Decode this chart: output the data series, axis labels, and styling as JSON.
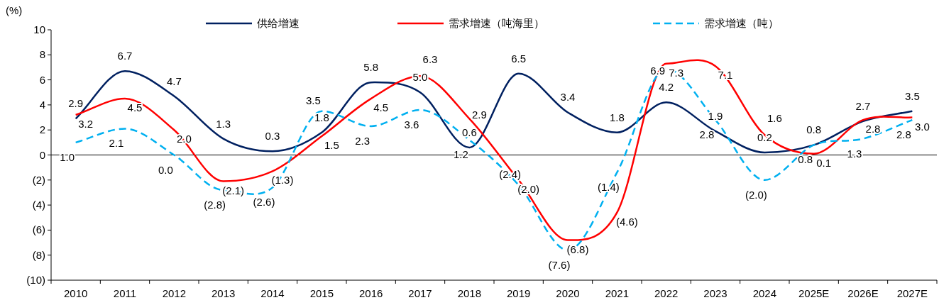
{
  "chart_data": {
    "type": "line",
    "ylabel": "(%)",
    "categories": [
      "2010",
      "2011",
      "2012",
      "2013",
      "2014",
      "2015",
      "2016",
      "2017",
      "2018",
      "2019",
      "2020",
      "2021",
      "2022",
      "2023",
      "2024",
      "2025E",
      "2026E",
      "2027E"
    ],
    "ylim": [
      -10,
      10
    ],
    "yticks": [
      {
        "value": -10,
        "label": "(10)"
      },
      {
        "value": -8,
        "label": "(8)"
      },
      {
        "value": -6,
        "label": "(6)"
      },
      {
        "value": -4,
        "label": "(4)"
      },
      {
        "value": -2,
        "label": "(2)"
      },
      0,
      2,
      4,
      6,
      8,
      10
    ],
    "grid": false,
    "ref_lines": [
      {
        "axis": "y",
        "value": 0,
        "color": "#000000"
      }
    ],
    "legend": "top",
    "marker": "none",
    "series": [
      {
        "name": "供给增速",
        "color": "#002060",
        "line_style": "solid",
        "values": [
          2.9,
          6.7,
          4.7,
          1.3,
          0.3,
          1.8,
          5.8,
          5.0,
          0.6,
          6.5,
          3.4,
          1.8,
          4.2,
          1.9,
          0.2,
          0.8,
          2.7,
          3.5
        ],
        "value_labels": [
          "2.9",
          "6.7",
          "4.7",
          "1.3",
          "0.3",
          "1.8",
          "5.8",
          "5.0",
          "0.6",
          "6.5",
          "3.4",
          "1.8",
          "4.2",
          "1.9",
          "0.2",
          "0.8",
          "2.7",
          "3.5"
        ]
      },
      {
        "name": "需求增速（吨海里）",
        "color": "#ff0000",
        "line_style": "solid",
        "values": [
          3.2,
          4.5,
          2.0,
          -2.1,
          -1.3,
          1.5,
          4.5,
          6.3,
          2.9,
          -2.0,
          -6.8,
          -4.6,
          7.3,
          7.1,
          1.6,
          0.1,
          2.8,
          3.0
        ],
        "value_labels": [
          "3.2",
          "4.5",
          "2.0",
          "(2.1)",
          "(1.3)",
          "1.5",
          "4.5",
          "6.3",
          "2.9",
          "(2.0)",
          "(6.8)",
          "(4.6)",
          "7.3",
          "7.1",
          "1.6",
          "0.1",
          "2.8",
          "3.0"
        ]
      },
      {
        "name": "需求增速（吨）",
        "color": "#00b0f0",
        "line_style": "dashed",
        "values": [
          1.0,
          2.1,
          0.0,
          -2.8,
          -2.6,
          3.5,
          2.3,
          3.6,
          1.2,
          -2.4,
          -7.6,
          -1.4,
          6.9,
          2.8,
          -2.0,
          0.8,
          1.3,
          2.8
        ],
        "value_labels": [
          "1.0",
          "2.1",
          "0.0",
          "(2.8)",
          "(2.6)",
          "3.5",
          "2.3",
          "3.6",
          "1.2",
          "(2.4)",
          "(7.6)",
          "(1.4)",
          "6.9",
          "2.8",
          "(2.0)",
          "0.8",
          "1.3",
          "2.8"
        ]
      }
    ]
  }
}
